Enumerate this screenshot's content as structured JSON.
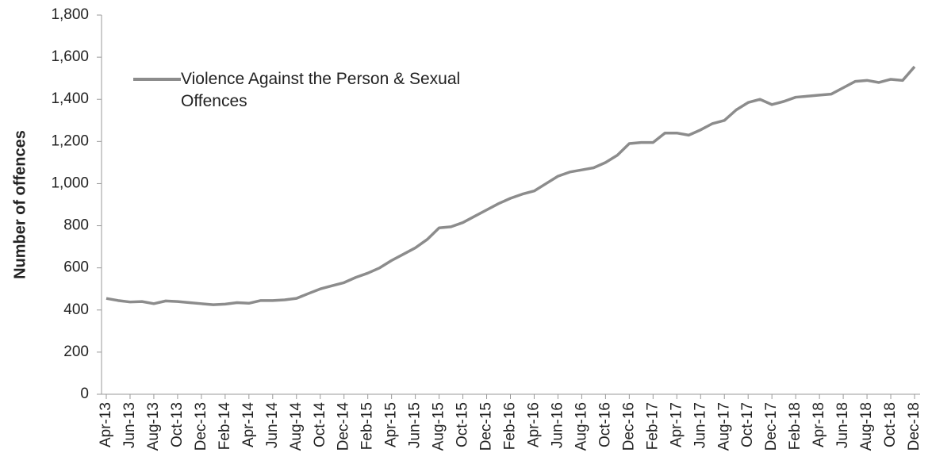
{
  "chart_data": {
    "type": "line",
    "ylabel": "Number of offences",
    "categories": [
      "Apr-13",
      null,
      "Jun-13",
      null,
      "Aug-13",
      null,
      "Oct-13",
      null,
      "Dec-13",
      null,
      "Feb-14",
      null,
      "Apr-14",
      null,
      "Jun-14",
      null,
      "Aug-14",
      null,
      "Oct-14",
      null,
      "Dec-14",
      null,
      "Feb-15",
      null,
      "Apr-15",
      null,
      "Jun-15",
      null,
      "Aug-15",
      null,
      "Oct-15",
      null,
      "Dec-15",
      null,
      "Feb-16",
      null,
      "Apr-16",
      null,
      "Jun-16",
      null,
      "Aug-16",
      null,
      "Oct-16",
      null,
      "Dec-16",
      null,
      "Feb-17",
      null,
      "Apr-17",
      null,
      "Jun-17",
      null,
      "Aug-17",
      null,
      "Oct-17",
      null,
      "Dec-17",
      null,
      "Feb-18",
      null,
      "Apr-18",
      null,
      "Jun-18",
      null,
      "Aug-18",
      null,
      "Oct-18",
      null,
      "Dec-18"
    ],
    "series": [
      {
        "name": "Violence Against the Person & Sexual Offences",
        "color": "#8c8c8c",
        "values": [
          455,
          445,
          438,
          440,
          430,
          443,
          440,
          435,
          430,
          425,
          428,
          435,
          432,
          445,
          445,
          448,
          455,
          478,
          500,
          515,
          530,
          555,
          575,
          600,
          635,
          665,
          695,
          735,
          790,
          795,
          815,
          845,
          875,
          905,
          930,
          950,
          965,
          1000,
          1035,
          1055,
          1065,
          1075,
          1100,
          1135,
          1190,
          1195,
          1195,
          1240,
          1240,
          1230,
          1255,
          1285,
          1300,
          1350,
          1385,
          1400,
          1375,
          1390,
          1410,
          1415,
          1420,
          1425,
          1455,
          1485,
          1490,
          1480,
          1495,
          1490,
          1555
        ]
      }
    ],
    "ylim": [
      0,
      1800
    ],
    "yticks": [
      0,
      200,
      400,
      600,
      800,
      {
        "value": 1000,
        "label": "1,000"
      },
      {
        "value": 1200,
        "label": "1,200"
      },
      {
        "value": 1400,
        "label": "1,400"
      },
      {
        "value": 1600,
        "label": "1,600"
      },
      {
        "value": 1800,
        "label": "1,800"
      }
    ],
    "legend": "upper left",
    "grid": false
  }
}
